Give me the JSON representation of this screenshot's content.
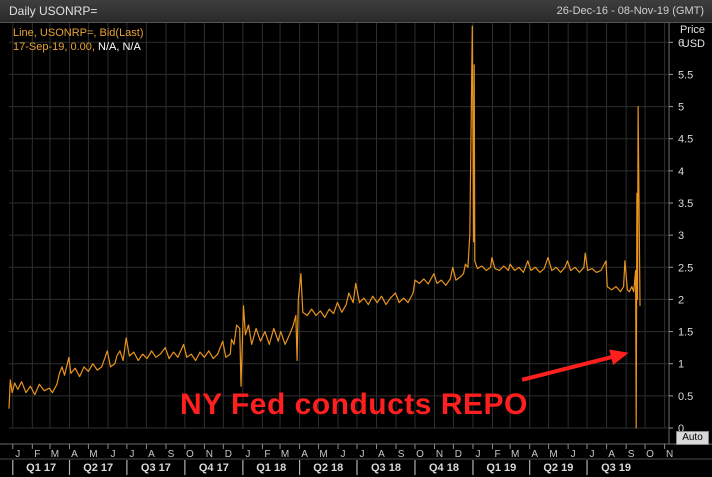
{
  "window": {
    "title": "Daily USONRP=",
    "date_range": "26-Dec-16 - 08-Nov-19 (GMT)"
  },
  "tooltip": {
    "series_line": "Line, USONRP=, Bid(Last)",
    "value_prefix": "17-Sep-19, 0.00,",
    "value_na": "N/A, N/A"
  },
  "axis": {
    "unit_line1": "Price",
    "unit_line2": "USD",
    "auto_label": "Auto"
  },
  "annotation": {
    "text": "NY Fed conducts REPO"
  },
  "colors": {
    "series": "#e8941e",
    "annotation": "#ff1f1f",
    "grid": "#2e2e2e",
    "background": "#000000"
  },
  "chart_data": {
    "type": "line",
    "xlim": [
      "2016-12-26",
      "2019-11-08"
    ],
    "ylim": [
      0,
      6.3
    ],
    "yticks": [
      0,
      0.5,
      1,
      1.5,
      2,
      2.5,
      3,
      3.5,
      4,
      4.5,
      5,
      5.5,
      6
    ],
    "ytick_labels": [
      "0",
      "0.5",
      "1",
      "1.5",
      "2",
      "2.5",
      "3",
      "3.5",
      "4",
      "4.5",
      "5",
      "5.5",
      "6"
    ],
    "month_ticks": [
      {
        "date": "2017-01-01",
        "label": "J"
      },
      {
        "date": "2017-02-01",
        "label": "F"
      },
      {
        "date": "2017-03-01",
        "label": "M"
      },
      {
        "date": "2017-04-01",
        "label": "A"
      },
      {
        "date": "2017-05-01",
        "label": "M"
      },
      {
        "date": "2017-06-01",
        "label": "J"
      },
      {
        "date": "2017-07-01",
        "label": "J"
      },
      {
        "date": "2017-08-01",
        "label": "A"
      },
      {
        "date": "2017-09-01",
        "label": "S"
      },
      {
        "date": "2017-10-01",
        "label": "O"
      },
      {
        "date": "2017-11-01",
        "label": "N"
      },
      {
        "date": "2017-12-01",
        "label": "D"
      },
      {
        "date": "2018-01-01",
        "label": "J"
      },
      {
        "date": "2018-02-01",
        "label": "F"
      },
      {
        "date": "2018-03-01",
        "label": "M"
      },
      {
        "date": "2018-04-01",
        "label": "A"
      },
      {
        "date": "2018-05-01",
        "label": "M"
      },
      {
        "date": "2018-06-01",
        "label": "J"
      },
      {
        "date": "2018-07-01",
        "label": "J"
      },
      {
        "date": "2018-08-01",
        "label": "A"
      },
      {
        "date": "2018-09-01",
        "label": "S"
      },
      {
        "date": "2018-10-01",
        "label": "O"
      },
      {
        "date": "2018-11-01",
        "label": "N"
      },
      {
        "date": "2018-12-01",
        "label": "D"
      },
      {
        "date": "2019-01-01",
        "label": "J"
      },
      {
        "date": "2019-02-01",
        "label": "F"
      },
      {
        "date": "2019-03-01",
        "label": "M"
      },
      {
        "date": "2019-04-01",
        "label": "A"
      },
      {
        "date": "2019-05-01",
        "label": "M"
      },
      {
        "date": "2019-06-01",
        "label": "J"
      },
      {
        "date": "2019-07-01",
        "label": "J"
      },
      {
        "date": "2019-08-01",
        "label": "A"
      },
      {
        "date": "2019-09-01",
        "label": "S"
      },
      {
        "date": "2019-10-01",
        "label": "O"
      },
      {
        "date": "2019-11-01",
        "label": "N"
      }
    ],
    "quarter_ticks": [
      {
        "date": "2017-01-01",
        "label": "Q1 17"
      },
      {
        "date": "2017-04-01",
        "label": "Q2 17"
      },
      {
        "date": "2017-07-01",
        "label": "Q3 17"
      },
      {
        "date": "2017-10-01",
        "label": "Q4 17"
      },
      {
        "date": "2018-01-01",
        "label": "Q1 18"
      },
      {
        "date": "2018-04-01",
        "label": "Q2 18"
      },
      {
        "date": "2018-07-01",
        "label": "Q3 18"
      },
      {
        "date": "2018-10-01",
        "label": "Q4 18"
      },
      {
        "date": "2019-01-01",
        "label": "Q1 19"
      },
      {
        "date": "2019-04-01",
        "label": "Q2 19"
      },
      {
        "date": "2019-07-01",
        "label": "Q3 19"
      }
    ],
    "series": [
      {
        "color": "#e8941e",
        "points": [
          [
            "2016-12-26",
            0.3
          ],
          [
            "2016-12-28",
            0.75
          ],
          [
            "2016-12-31",
            0.55
          ],
          [
            "2017-01-04",
            0.7
          ],
          [
            "2017-01-09",
            0.6
          ],
          [
            "2017-01-15",
            0.72
          ],
          [
            "2017-01-22",
            0.55
          ],
          [
            "2017-01-29",
            0.65
          ],
          [
            "2017-02-05",
            0.52
          ],
          [
            "2017-02-12",
            0.68
          ],
          [
            "2017-02-20",
            0.58
          ],
          [
            "2017-02-28",
            0.62
          ],
          [
            "2017-03-05",
            0.55
          ],
          [
            "2017-03-12",
            0.68
          ],
          [
            "2017-03-16",
            0.85
          ],
          [
            "2017-03-20",
            0.95
          ],
          [
            "2017-03-24",
            0.82
          ],
          [
            "2017-03-31",
            1.1
          ],
          [
            "2017-04-03",
            0.85
          ],
          [
            "2017-04-10",
            0.93
          ],
          [
            "2017-04-17",
            0.8
          ],
          [
            "2017-04-24",
            0.95
          ],
          [
            "2017-05-01",
            0.88
          ],
          [
            "2017-05-08",
            1.0
          ],
          [
            "2017-05-15",
            0.9
          ],
          [
            "2017-05-22",
            0.95
          ],
          [
            "2017-05-31",
            1.2
          ],
          [
            "2017-06-05",
            0.95
          ],
          [
            "2017-06-12",
            1.0
          ],
          [
            "2017-06-15",
            1.12
          ],
          [
            "2017-06-20",
            1.2
          ],
          [
            "2017-06-25",
            1.05
          ],
          [
            "2017-06-30",
            1.4
          ],
          [
            "2017-07-05",
            1.12
          ],
          [
            "2017-07-12",
            1.18
          ],
          [
            "2017-07-19",
            1.05
          ],
          [
            "2017-07-26",
            1.15
          ],
          [
            "2017-08-02",
            1.08
          ],
          [
            "2017-08-09",
            1.2
          ],
          [
            "2017-08-16",
            1.1
          ],
          [
            "2017-08-23",
            1.15
          ],
          [
            "2017-08-31",
            1.25
          ],
          [
            "2017-09-06",
            1.08
          ],
          [
            "2017-09-13",
            1.18
          ],
          [
            "2017-09-20",
            1.1
          ],
          [
            "2017-09-29",
            1.3
          ],
          [
            "2017-10-04",
            1.1
          ],
          [
            "2017-10-11",
            1.15
          ],
          [
            "2017-10-18",
            1.05
          ],
          [
            "2017-10-25",
            1.18
          ],
          [
            "2017-11-01",
            1.1
          ],
          [
            "2017-11-08",
            1.2
          ],
          [
            "2017-11-15",
            1.08
          ],
          [
            "2017-11-22",
            1.15
          ],
          [
            "2017-11-30",
            1.35
          ],
          [
            "2017-12-05",
            1.1
          ],
          [
            "2017-12-12",
            1.15
          ],
          [
            "2017-12-14",
            1.38
          ],
          [
            "2017-12-18",
            1.3
          ],
          [
            "2017-12-22",
            1.6
          ],
          [
            "2017-12-27",
            1.55
          ],
          [
            "2017-12-29",
            0.65
          ],
          [
            "2018-01-02",
            1.9
          ],
          [
            "2018-01-05",
            1.45
          ],
          [
            "2018-01-10",
            1.6
          ],
          [
            "2018-01-15",
            1.3
          ],
          [
            "2018-01-22",
            1.55
          ],
          [
            "2018-01-29",
            1.35
          ],
          [
            "2018-02-05",
            1.5
          ],
          [
            "2018-02-12",
            1.3
          ],
          [
            "2018-02-19",
            1.55
          ],
          [
            "2018-02-26",
            1.35
          ],
          [
            "2018-03-02",
            1.5
          ],
          [
            "2018-03-09",
            1.3
          ],
          [
            "2018-03-16",
            1.45
          ],
          [
            "2018-03-22",
            1.6
          ],
          [
            "2018-03-26",
            1.75
          ],
          [
            "2018-03-28",
            1.05
          ],
          [
            "2018-03-30",
            2.0
          ],
          [
            "2018-04-03",
            2.4
          ],
          [
            "2018-04-06",
            1.8
          ],
          [
            "2018-04-13",
            1.75
          ],
          [
            "2018-04-20",
            1.85
          ],
          [
            "2018-04-27",
            1.75
          ],
          [
            "2018-05-04",
            1.82
          ],
          [
            "2018-05-11",
            1.72
          ],
          [
            "2018-05-18",
            1.85
          ],
          [
            "2018-05-25",
            1.78
          ],
          [
            "2018-05-31",
            1.95
          ],
          [
            "2018-06-07",
            1.8
          ],
          [
            "2018-06-14",
            1.92
          ],
          [
            "2018-06-18",
            2.1
          ],
          [
            "2018-06-25",
            1.95
          ],
          [
            "2018-06-29",
            2.25
          ],
          [
            "2018-07-05",
            1.95
          ],
          [
            "2018-07-12",
            2.02
          ],
          [
            "2018-07-19",
            1.92
          ],
          [
            "2018-07-26",
            2.05
          ],
          [
            "2018-08-02",
            1.95
          ],
          [
            "2018-08-09",
            2.05
          ],
          [
            "2018-08-16",
            1.92
          ],
          [
            "2018-08-23",
            2.02
          ],
          [
            "2018-08-31",
            2.1
          ],
          [
            "2018-09-06",
            1.95
          ],
          [
            "2018-09-13",
            2.02
          ],
          [
            "2018-09-20",
            1.95
          ],
          [
            "2018-09-28",
            2.1
          ],
          [
            "2018-10-01",
            2.3
          ],
          [
            "2018-10-08",
            2.25
          ],
          [
            "2018-10-15",
            2.32
          ],
          [
            "2018-10-22",
            2.24
          ],
          [
            "2018-10-31",
            2.4
          ],
          [
            "2018-11-05",
            2.25
          ],
          [
            "2018-11-12",
            2.3
          ],
          [
            "2018-11-19",
            2.22
          ],
          [
            "2018-11-26",
            2.32
          ],
          [
            "2018-11-30",
            2.5
          ],
          [
            "2018-12-05",
            2.3
          ],
          [
            "2018-12-12",
            2.35
          ],
          [
            "2018-12-17",
            2.4
          ],
          [
            "2018-12-20",
            2.55
          ],
          [
            "2018-12-24",
            2.5
          ],
          [
            "2018-12-27",
            3.0
          ],
          [
            "2018-12-31",
            6.25
          ],
          [
            "2019-01-02",
            2.9
          ],
          [
            "2019-01-03",
            5.65
          ],
          [
            "2019-01-04",
            2.6
          ],
          [
            "2019-01-08",
            2.48
          ],
          [
            "2019-01-15",
            2.52
          ],
          [
            "2019-01-22",
            2.45
          ],
          [
            "2019-01-29",
            2.5
          ],
          [
            "2019-01-31",
            2.65
          ],
          [
            "2019-02-05",
            2.48
          ],
          [
            "2019-02-12",
            2.45
          ],
          [
            "2019-02-19",
            2.52
          ],
          [
            "2019-02-26",
            2.45
          ],
          [
            "2019-03-01",
            2.55
          ],
          [
            "2019-03-08",
            2.45
          ],
          [
            "2019-03-15",
            2.5
          ],
          [
            "2019-03-22",
            2.42
          ],
          [
            "2019-03-29",
            2.6
          ],
          [
            "2019-04-03",
            2.45
          ],
          [
            "2019-04-10",
            2.5
          ],
          [
            "2019-04-17",
            2.42
          ],
          [
            "2019-04-24",
            2.48
          ],
          [
            "2019-04-30",
            2.65
          ],
          [
            "2019-05-06",
            2.45
          ],
          [
            "2019-05-13",
            2.5
          ],
          [
            "2019-05-20",
            2.42
          ],
          [
            "2019-05-27",
            2.5
          ],
          [
            "2019-05-31",
            2.6
          ],
          [
            "2019-06-05",
            2.45
          ],
          [
            "2019-06-12",
            2.5
          ],
          [
            "2019-06-19",
            2.42
          ],
          [
            "2019-06-26",
            2.5
          ],
          [
            "2019-06-28",
            2.72
          ],
          [
            "2019-07-02",
            2.45
          ],
          [
            "2019-07-09",
            2.48
          ],
          [
            "2019-07-16",
            2.42
          ],
          [
            "2019-07-23",
            2.45
          ],
          [
            "2019-07-31",
            2.6
          ],
          [
            "2019-08-02",
            2.2
          ],
          [
            "2019-08-09",
            2.15
          ],
          [
            "2019-08-16",
            2.2
          ],
          [
            "2019-08-23",
            2.12
          ],
          [
            "2019-08-28",
            2.2
          ],
          [
            "2019-08-30",
            2.6
          ],
          [
            "2019-09-03",
            2.15
          ],
          [
            "2019-09-06",
            2.12
          ],
          [
            "2019-09-10",
            2.2
          ],
          [
            "2019-09-13",
            2.12
          ],
          [
            "2019-09-16",
            2.45
          ],
          [
            "2019-09-17",
            0.0
          ],
          [
            "2019-09-18",
            3.65
          ],
          [
            "2019-09-19",
            2.0
          ],
          [
            "2019-09-20",
            5.0
          ],
          [
            "2019-09-23",
            1.9
          ]
        ]
      }
    ],
    "arrow": {
      "from": [
        "2019-03-20",
        0.75
      ],
      "to": [
        "2019-09-05",
        1.17
      ]
    }
  }
}
